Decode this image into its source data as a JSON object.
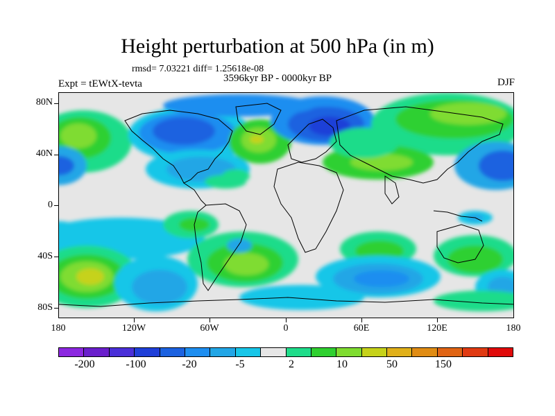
{
  "title": "Height perturbation at 500 hPa (in m)",
  "stats": "rmsd= 7.03221 diff= 1.25618e-08",
  "period": "3596kyr BP - 0000kyr BP",
  "experiment": "Expt = tEWtX-tevta",
  "season": "DJF",
  "lat_labels": [
    "80N",
    "40N",
    "0",
    "40S",
    "80S"
  ],
  "lon_labels": [
    "180",
    "120W",
    "60W",
    "0",
    "60E",
    "120E",
    "180"
  ],
  "colorbar": {
    "colors": [
      "#8c28e0",
      "#6a1fcc",
      "#4a2fd8",
      "#1f3fd8",
      "#1c62e0",
      "#1e8ef0",
      "#22a6e6",
      "#18c6e8",
      "#e6e6e6",
      "#1fdc8a",
      "#2fd030",
      "#7fdc30",
      "#c6d21a",
      "#e0b01a",
      "#e08c14",
      "#e06414",
      "#e03a12",
      "#e00a0a"
    ],
    "labels": [
      "-200",
      "-100",
      "-20",
      "-5",
      "2",
      "10",
      "50",
      "150"
    ]
  },
  "field_colors": {
    "deep_blue": "#1f3fd8",
    "blue": "#1c62e0",
    "mid_blue": "#1e8ef0",
    "light_blue": "#22a6e6",
    "cyan": "#18c6e8",
    "neutral": "#e6e6e6",
    "teal": "#1fdc8a",
    "green": "#2fd030",
    "lime": "#7fdc30",
    "yellow": "#c6d21a",
    "orange": "#e0b01a"
  }
}
